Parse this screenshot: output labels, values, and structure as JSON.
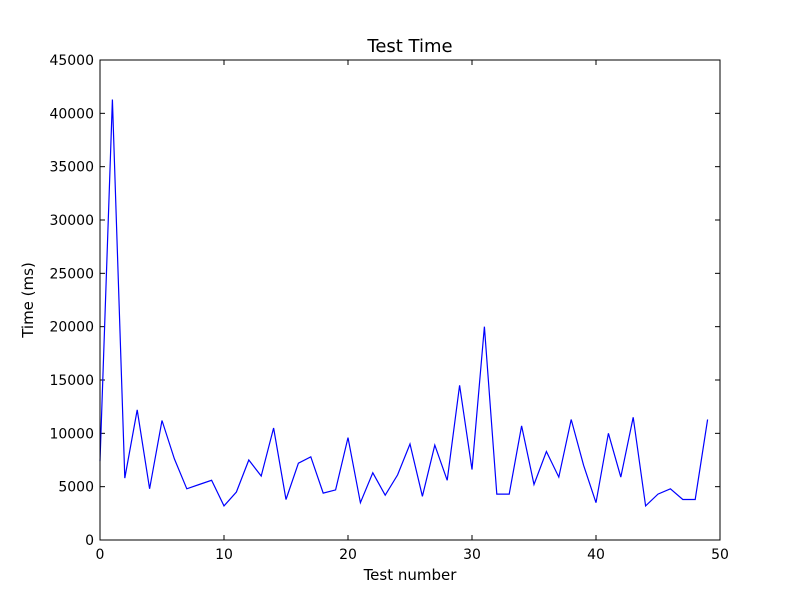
{
  "chart_data": {
    "type": "line",
    "title": "Test Time",
    "xlabel": "Test number",
    "ylabel": "Time (ms)",
    "xlim": [
      0,
      50
    ],
    "ylim": [
      0,
      45000
    ],
    "xticks": [
      0,
      10,
      20,
      30,
      40,
      50
    ],
    "yticks": [
      0,
      5000,
      10000,
      15000,
      20000,
      25000,
      30000,
      35000,
      40000,
      45000
    ],
    "grid": false,
    "series": [
      {
        "color": "#0000ff",
        "x": [
          0,
          1,
          2,
          3,
          4,
          5,
          6,
          7,
          8,
          9,
          10,
          11,
          12,
          13,
          14,
          15,
          16,
          17,
          18,
          19,
          20,
          21,
          22,
          23,
          24,
          25,
          26,
          27,
          28,
          29,
          30,
          31,
          32,
          33,
          34,
          35,
          36,
          37,
          38,
          39,
          40,
          41,
          42,
          43,
          44,
          45,
          46,
          47,
          48,
          49
        ],
        "values": [
          7400,
          41300,
          5800,
          12200,
          4800,
          11200,
          7600,
          4800,
          5200,
          5600,
          3200,
          4500,
          7500,
          6000,
          10500,
          3800,
          7200,
          7800,
          4400,
          4700,
          9600,
          3500,
          6300,
          4200,
          6100,
          9000,
          4100,
          8900,
          5600,
          14500,
          6600,
          20000,
          4300,
          4300,
          10700,
          5200,
          8300,
          5900,
          11300,
          7000,
          3500,
          10000,
          5900,
          11500,
          3200,
          4300,
          4800,
          3800,
          3800,
          11300
        ]
      }
    ]
  }
}
